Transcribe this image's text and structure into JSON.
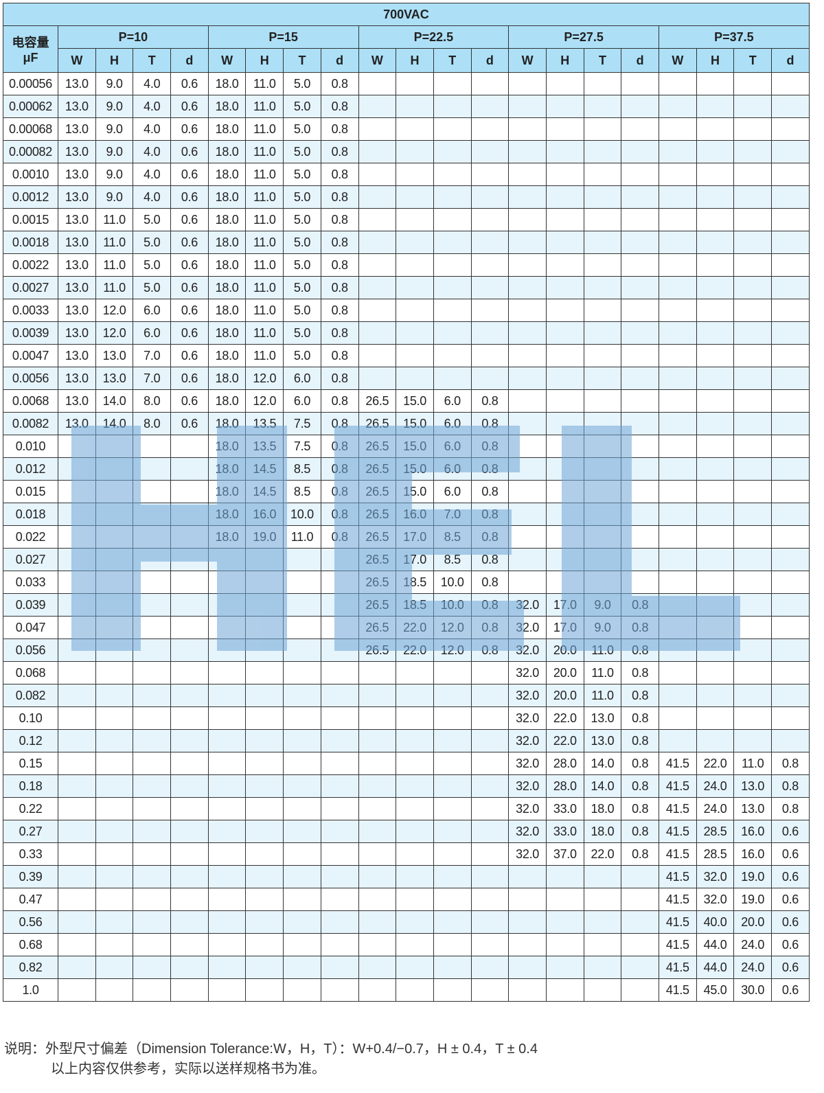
{
  "title": "700VAC",
  "cap_header": {
    "line1": "电容量",
    "line2": "μF"
  },
  "pitches": [
    "P=10",
    "P=15",
    "P=22.5",
    "P=27.5",
    "P=37.5"
  ],
  "sub_headers": [
    "W",
    "H",
    "T",
    "d"
  ],
  "watermark": {
    "text": "HEL",
    "color": "#6fa6d6"
  },
  "colors": {
    "header": "#ade0f7",
    "row_alt": "#e6f4fc"
  },
  "rows": [
    [
      "0.00056",
      "13.0",
      "9.0",
      "4.0",
      "0.6",
      "18.0",
      "11.0",
      "5.0",
      "0.8",
      "",
      "",
      "",
      "",
      "",
      "",
      "",
      "",
      "",
      "",
      "",
      ""
    ],
    [
      "0.00062",
      "13.0",
      "9.0",
      "4.0",
      "0.6",
      "18.0",
      "11.0",
      "5.0",
      "0.8",
      "",
      "",
      "",
      "",
      "",
      "",
      "",
      "",
      "",
      "",
      "",
      ""
    ],
    [
      "0.00068",
      "13.0",
      "9.0",
      "4.0",
      "0.6",
      "18.0",
      "11.0",
      "5.0",
      "0.8",
      "",
      "",
      "",
      "",
      "",
      "",
      "",
      "",
      "",
      "",
      "",
      ""
    ],
    [
      "0.00082",
      "13.0",
      "9.0",
      "4.0",
      "0.6",
      "18.0",
      "11.0",
      "5.0",
      "0.8",
      "",
      "",
      "",
      "",
      "",
      "",
      "",
      "",
      "",
      "",
      "",
      ""
    ],
    [
      "0.0010",
      "13.0",
      "9.0",
      "4.0",
      "0.6",
      "18.0",
      "11.0",
      "5.0",
      "0.8",
      "",
      "",
      "",
      "",
      "",
      "",
      "",
      "",
      "",
      "",
      "",
      ""
    ],
    [
      "0.0012",
      "13.0",
      "9.0",
      "4.0",
      "0.6",
      "18.0",
      "11.0",
      "5.0",
      "0.8",
      "",
      "",
      "",
      "",
      "",
      "",
      "",
      "",
      "",
      "",
      "",
      ""
    ],
    [
      "0.0015",
      "13.0",
      "11.0",
      "5.0",
      "0.6",
      "18.0",
      "11.0",
      "5.0",
      "0.8",
      "",
      "",
      "",
      "",
      "",
      "",
      "",
      "",
      "",
      "",
      "",
      ""
    ],
    [
      "0.0018",
      "13.0",
      "11.0",
      "5.0",
      "0.6",
      "18.0",
      "11.0",
      "5.0",
      "0.8",
      "",
      "",
      "",
      "",
      "",
      "",
      "",
      "",
      "",
      "",
      "",
      ""
    ],
    [
      "0.0022",
      "13.0",
      "11.0",
      "5.0",
      "0.6",
      "18.0",
      "11.0",
      "5.0",
      "0.8",
      "",
      "",
      "",
      "",
      "",
      "",
      "",
      "",
      "",
      "",
      "",
      ""
    ],
    [
      "0.0027",
      "13.0",
      "11.0",
      "5.0",
      "0.6",
      "18.0",
      "11.0",
      "5.0",
      "0.8",
      "",
      "",
      "",
      "",
      "",
      "",
      "",
      "",
      "",
      "",
      "",
      ""
    ],
    [
      "0.0033",
      "13.0",
      "12.0",
      "6.0",
      "0.6",
      "18.0",
      "11.0",
      "5.0",
      "0.8",
      "",
      "",
      "",
      "",
      "",
      "",
      "",
      "",
      "",
      "",
      "",
      ""
    ],
    [
      "0.0039",
      "13.0",
      "12.0",
      "6.0",
      "0.6",
      "18.0",
      "11.0",
      "5.0",
      "0.8",
      "",
      "",
      "",
      "",
      "",
      "",
      "",
      "",
      "",
      "",
      "",
      ""
    ],
    [
      "0.0047",
      "13.0",
      "13.0",
      "7.0",
      "0.6",
      "18.0",
      "11.0",
      "5.0",
      "0.8",
      "",
      "",
      "",
      "",
      "",
      "",
      "",
      "",
      "",
      "",
      "",
      ""
    ],
    [
      "0.0056",
      "13.0",
      "13.0",
      "7.0",
      "0.6",
      "18.0",
      "12.0",
      "6.0",
      "0.8",
      "",
      "",
      "",
      "",
      "",
      "",
      "",
      "",
      "",
      "",
      "",
      ""
    ],
    [
      "0.0068",
      "13.0",
      "14.0",
      "8.0",
      "0.6",
      "18.0",
      "12.0",
      "6.0",
      "0.8",
      "26.5",
      "15.0",
      "6.0",
      "0.8",
      "",
      "",
      "",
      "",
      "",
      "",
      "",
      ""
    ],
    [
      "0.0082",
      "13.0",
      "14.0",
      "8.0",
      "0.6",
      "18.0",
      "13.5",
      "7.5",
      "0.8",
      "26.5",
      "15.0",
      "6.0",
      "0.8",
      "",
      "",
      "",
      "",
      "",
      "",
      "",
      ""
    ],
    [
      "0.010",
      "",
      "",
      "",
      "",
      "18.0",
      "13.5",
      "7.5",
      "0.8",
      "26.5",
      "15.0",
      "6.0",
      "0.8",
      "",
      "",
      "",
      "",
      "",
      "",
      "",
      ""
    ],
    [
      "0.012",
      "",
      "",
      "",
      "",
      "18.0",
      "14.5",
      "8.5",
      "0.8",
      "26.5",
      "15.0",
      "6.0",
      "0.8",
      "",
      "",
      "",
      "",
      "",
      "",
      "",
      ""
    ],
    [
      "0.015",
      "",
      "",
      "",
      "",
      "18.0",
      "14.5",
      "8.5",
      "0.8",
      "26.5",
      "15.0",
      "6.0",
      "0.8",
      "",
      "",
      "",
      "",
      "",
      "",
      "",
      ""
    ],
    [
      "0.018",
      "",
      "",
      "",
      "",
      "18.0",
      "16.0",
      "10.0",
      "0.8",
      "26.5",
      "16.0",
      "7.0",
      "0.8",
      "",
      "",
      "",
      "",
      "",
      "",
      "",
      ""
    ],
    [
      "0.022",
      "",
      "",
      "",
      "",
      "18.0",
      "19.0",
      "11.0",
      "0.8",
      "26.5",
      "17.0",
      "8.5",
      "0.8",
      "",
      "",
      "",
      "",
      "",
      "",
      "",
      ""
    ],
    [
      "0.027",
      "",
      "",
      "",
      "",
      "",
      "",
      "",
      "",
      "26.5",
      "17.0",
      "8.5",
      "0.8",
      "",
      "",
      "",
      "",
      "",
      "",
      "",
      ""
    ],
    [
      "0.033",
      "",
      "",
      "",
      "",
      "",
      "",
      "",
      "",
      "26.5",
      "18.5",
      "10.0",
      "0.8",
      "",
      "",
      "",
      "",
      "",
      "",
      "",
      ""
    ],
    [
      "0.039",
      "",
      "",
      "",
      "",
      "",
      "",
      "",
      "",
      "26.5",
      "18.5",
      "10.0",
      "0.8",
      "32.0",
      "17.0",
      "9.0",
      "0.8",
      "",
      "",
      "",
      ""
    ],
    [
      "0.047",
      "",
      "",
      "",
      "",
      "",
      "",
      "",
      "",
      "26.5",
      "22.0",
      "12.0",
      "0.8",
      "32.0",
      "17.0",
      "9.0",
      "0.8",
      "",
      "",
      "",
      ""
    ],
    [
      "0.056",
      "",
      "",
      "",
      "",
      "",
      "",
      "",
      "",
      "26.5",
      "22.0",
      "12.0",
      "0.8",
      "32.0",
      "20.0",
      "11.0",
      "0.8",
      "",
      "",
      "",
      ""
    ],
    [
      "0.068",
      "",
      "",
      "",
      "",
      "",
      "",
      "",
      "",
      "",
      "",
      "",
      "",
      "32.0",
      "20.0",
      "11.0",
      "0.8",
      "",
      "",
      "",
      ""
    ],
    [
      "0.082",
      "",
      "",
      "",
      "",
      "",
      "",
      "",
      "",
      "",
      "",
      "",
      "",
      "32.0",
      "20.0",
      "11.0",
      "0.8",
      "",
      "",
      "",
      ""
    ],
    [
      "0.10",
      "",
      "",
      "",
      "",
      "",
      "",
      "",
      "",
      "",
      "",
      "",
      "",
      "32.0",
      "22.0",
      "13.0",
      "0.8",
      "",
      "",
      "",
      ""
    ],
    [
      "0.12",
      "",
      "",
      "",
      "",
      "",
      "",
      "",
      "",
      "",
      "",
      "",
      "",
      "32.0",
      "22.0",
      "13.0",
      "0.8",
      "",
      "",
      "",
      ""
    ],
    [
      "0.15",
      "",
      "",
      "",
      "",
      "",
      "",
      "",
      "",
      "",
      "",
      "",
      "",
      "32.0",
      "28.0",
      "14.0",
      "0.8",
      "41.5",
      "22.0",
      "11.0",
      "0.8"
    ],
    [
      "0.18",
      "",
      "",
      "",
      "",
      "",
      "",
      "",
      "",
      "",
      "",
      "",
      "",
      "32.0",
      "28.0",
      "14.0",
      "0.8",
      "41.5",
      "24.0",
      "13.0",
      "0.8"
    ],
    [
      "0.22",
      "",
      "",
      "",
      "",
      "",
      "",
      "",
      "",
      "",
      "",
      "",
      "",
      "32.0",
      "33.0",
      "18.0",
      "0.8",
      "41.5",
      "24.0",
      "13.0",
      "0.8"
    ],
    [
      "0.27",
      "",
      "",
      "",
      "",
      "",
      "",
      "",
      "",
      "",
      "",
      "",
      "",
      "32.0",
      "33.0",
      "18.0",
      "0.8",
      "41.5",
      "28.5",
      "16.0",
      "0.6"
    ],
    [
      "0.33",
      "",
      "",
      "",
      "",
      "",
      "",
      "",
      "",
      "",
      "",
      "",
      "",
      "32.0",
      "37.0",
      "22.0",
      "0.8",
      "41.5",
      "28.5",
      "16.0",
      "0.6"
    ],
    [
      "0.39",
      "",
      "",
      "",
      "",
      "",
      "",
      "",
      "",
      "",
      "",
      "",
      "",
      "",
      "",
      "",
      "",
      "41.5",
      "32.0",
      "19.0",
      "0.6"
    ],
    [
      "0.47",
      "",
      "",
      "",
      "",
      "",
      "",
      "",
      "",
      "",
      "",
      "",
      "",
      "",
      "",
      "",
      "",
      "41.5",
      "32.0",
      "19.0",
      "0.6"
    ],
    [
      "0.56",
      "",
      "",
      "",
      "",
      "",
      "",
      "",
      "",
      "",
      "",
      "",
      "",
      "",
      "",
      "",
      "",
      "41.5",
      "40.0",
      "20.0",
      "0.6"
    ],
    [
      "0.68",
      "",
      "",
      "",
      "",
      "",
      "",
      "",
      "",
      "",
      "",
      "",
      "",
      "",
      "",
      "",
      "",
      "41.5",
      "44.0",
      "24.0",
      "0.6"
    ],
    [
      "0.82",
      "",
      "",
      "",
      "",
      "",
      "",
      "",
      "",
      "",
      "",
      "",
      "",
      "",
      "",
      "",
      "",
      "41.5",
      "44.0",
      "24.0",
      "0.6"
    ],
    [
      "1.0",
      "",
      "",
      "",
      "",
      "",
      "",
      "",
      "",
      "",
      "",
      "",
      "",
      "",
      "",
      "",
      "",
      "41.5",
      "45.0",
      "30.0",
      "0.6"
    ]
  ],
  "notes": {
    "line1": "说明：外型尺寸偏差（Dimension Tolerance:W，H，T）：W+0.4/−0.7，H ± 0.4，T ± 0.4",
    "line2": "以上内容仅供参考，实际以送样规格书为准。"
  }
}
